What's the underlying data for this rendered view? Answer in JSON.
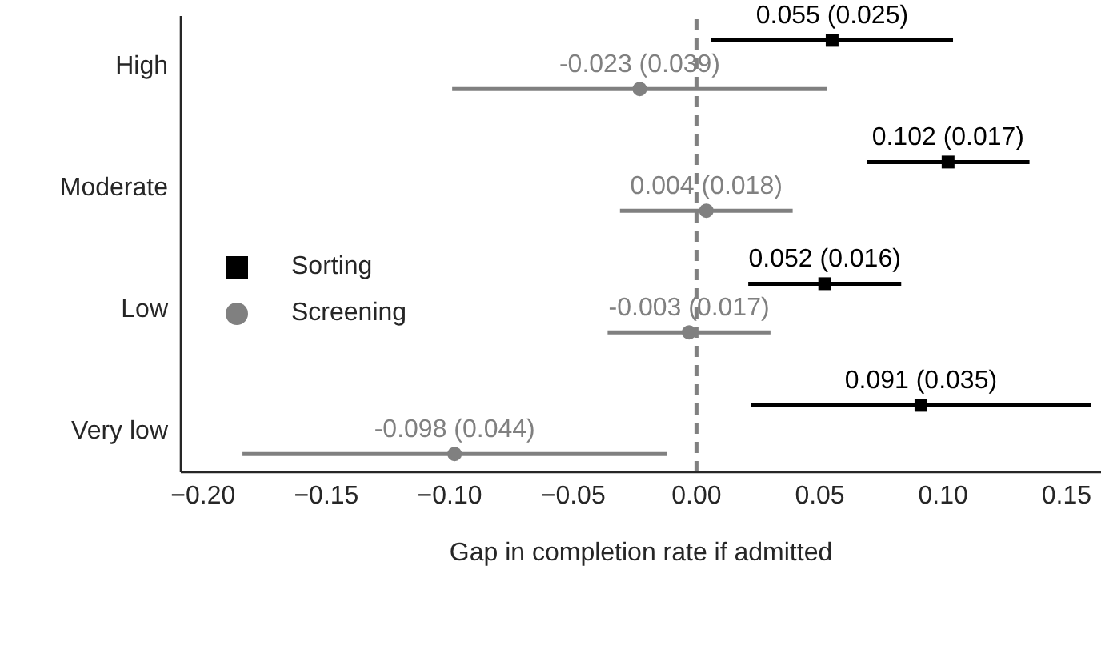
{
  "chart_data": {
    "type": "scatter",
    "orientation": "horizontal",
    "xlabel": "Gap in completion rate if admitted",
    "categories": [
      "High",
      "Moderate",
      "Low",
      "Very low"
    ],
    "series": [
      {
        "name": "Sorting",
        "color": "#000000",
        "marker": "square",
        "values": [
          0.055,
          0.102,
          0.052,
          0.091
        ],
        "errors": [
          0.049,
          0.033,
          0.031,
          0.069
        ],
        "value_labels": [
          "0.055 (0.025)",
          "0.102 (0.017)",
          "0.052 (0.016)",
          "0.091 (0.035)"
        ]
      },
      {
        "name": "Screening",
        "color": "#808080",
        "marker": "circle",
        "values": [
          -0.023,
          0.004,
          -0.003,
          -0.098
        ],
        "errors": [
          0.076,
          0.035,
          0.033,
          0.086
        ],
        "value_labels": [
          "-0.023 (0.039)",
          "0.004 (0.018)",
          "-0.003 (0.017)",
          "-0.098 (0.044)"
        ]
      }
    ],
    "xlim": [
      -0.209,
      0.164
    ],
    "xticks": [
      {
        "value": -0.2,
        "label": "−0.20"
      },
      {
        "value": -0.15,
        "label": "−0.15"
      },
      {
        "value": -0.1,
        "label": "−0.10"
      },
      {
        "value": -0.05,
        "label": "−0.05"
      },
      {
        "value": 0,
        "label": "0.00"
      },
      {
        "value": 0.05,
        "label": "0.05"
      },
      {
        "value": 0.1,
        "label": "0.10"
      },
      {
        "value": 0.15,
        "label": "0.15"
      }
    ],
    "ref_lines": [
      {
        "axis": "x",
        "value": 0,
        "color": "#808080",
        "line_style": "dashed"
      }
    ],
    "grid": false,
    "legend": "center left"
  }
}
